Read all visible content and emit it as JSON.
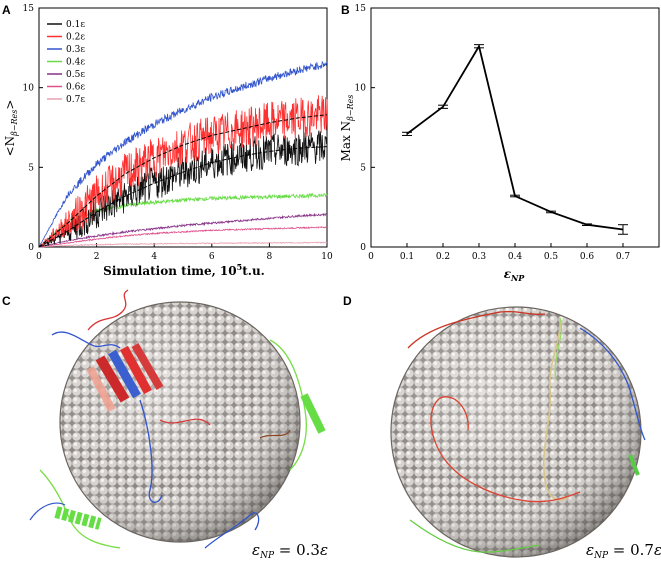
{
  "panels": {
    "a": "A",
    "b": "B",
    "c": "C",
    "d": "D"
  },
  "chart_data": [
    {
      "id": "A",
      "type": "line",
      "title": "",
      "xlabel": "Simulation time, 10",
      "xlabel_sup": "5",
      "xlabel_suffix": "t.u.",
      "ylabel": "<N",
      "ylabel_sub": "β−Res",
      "ylabel_end": ">",
      "xlim": [
        0,
        10
      ],
      "ylim": [
        0,
        15
      ],
      "xticks": [
        0,
        2,
        4,
        6,
        8,
        10
      ],
      "yticks": [
        0,
        5,
        10,
        15
      ],
      "legend_position": "top-left",
      "series": [
        {
          "name": "0.1ε",
          "color": "#111111",
          "noise": 1.1,
          "x": [
            0,
            1,
            2,
            3,
            4,
            5,
            6,
            7,
            8,
            9,
            10
          ],
          "values": [
            0,
            1.0,
            2.2,
            3.2,
            4.0,
            4.7,
            5.3,
            5.7,
            6.0,
            6.2,
            6.3
          ]
        },
        {
          "name": "0.2ε",
          "color": "#ff3030",
          "noise": 1.3,
          "x": [
            0,
            1,
            2,
            3,
            4,
            5,
            6,
            7,
            8,
            9,
            10
          ],
          "values": [
            0,
            1.5,
            3.2,
            4.6,
            5.6,
            6.4,
            7.0,
            7.4,
            7.8,
            8.1,
            8.3
          ]
        },
        {
          "name": "0.3ε",
          "color": "#3355cc",
          "noise": 0.25,
          "x": [
            0,
            1,
            2,
            3,
            4,
            5,
            6,
            7,
            8,
            9,
            10
          ],
          "values": [
            0,
            3.3,
            5.2,
            6.6,
            7.7,
            8.6,
            9.4,
            10.0,
            10.6,
            11.1,
            11.5
          ]
        },
        {
          "name": "0.4ε",
          "color": "#66dd44",
          "noise": 0.12,
          "x": [
            0,
            1,
            2,
            3,
            4,
            5,
            6,
            7,
            8,
            9,
            10
          ],
          "values": [
            0,
            1.6,
            2.3,
            2.6,
            2.8,
            2.95,
            3.05,
            3.1,
            3.15,
            3.2,
            3.25
          ]
        },
        {
          "name": "0.5ε",
          "color": "#883388",
          "noise": 0.06,
          "x": [
            0,
            1,
            2,
            3,
            4,
            5,
            6,
            7,
            8,
            9,
            10
          ],
          "values": [
            0,
            0.4,
            0.7,
            0.95,
            1.15,
            1.35,
            1.5,
            1.65,
            1.8,
            1.95,
            2.05
          ]
        },
        {
          "name": "0.6ε",
          "color": "#e0508a",
          "noise": 0.04,
          "x": [
            0,
            1,
            2,
            3,
            4,
            5,
            6,
            7,
            8,
            9,
            10
          ],
          "values": [
            0,
            0.25,
            0.5,
            0.7,
            0.85,
            0.95,
            1.05,
            1.1,
            1.15,
            1.2,
            1.25
          ]
        },
        {
          "name": "0.7ε",
          "color": "#e8a0b0",
          "noise": 0.03,
          "x": [
            0,
            1,
            2,
            3,
            4,
            5,
            6,
            7,
            8,
            9,
            10
          ],
          "values": [
            0,
            0.1,
            0.15,
            0.18,
            0.2,
            0.22,
            0.24,
            0.25,
            0.26,
            0.27,
            0.28
          ]
        }
      ]
    },
    {
      "id": "B",
      "type": "line",
      "title": "",
      "xlabel": "ε",
      "xlabel_sub": "NP",
      "ylabel": "Max N",
      "ylabel_sub": "β−Res",
      "xlim": [
        0,
        0.8
      ],
      "ylim": [
        0,
        15
      ],
      "xticks": [
        0,
        0.1,
        0.2,
        0.3,
        0.4,
        0.5,
        0.6,
        0.7
      ],
      "yticks": [
        0,
        5,
        10,
        15
      ],
      "series": [
        {
          "name": "Max N β-Res",
          "color": "#000000",
          "x": [
            0.1,
            0.2,
            0.3,
            0.4,
            0.5,
            0.6,
            0.7
          ],
          "values": [
            7.1,
            8.8,
            12.6,
            3.2,
            2.2,
            1.4,
            1.1
          ],
          "errors": [
            0.1,
            0.1,
            0.1,
            0.05,
            0.05,
            0.05,
            0.3
          ]
        }
      ]
    }
  ],
  "renderings": {
    "c_label": {
      "symbol": "ε",
      "sub": "NP",
      "eq": " = 0.3",
      "symbol2": "ε"
    },
    "d_label": {
      "symbol": "ε",
      "sub": "NP",
      "eq": " = 0.7",
      "symbol2": "ε"
    }
  }
}
